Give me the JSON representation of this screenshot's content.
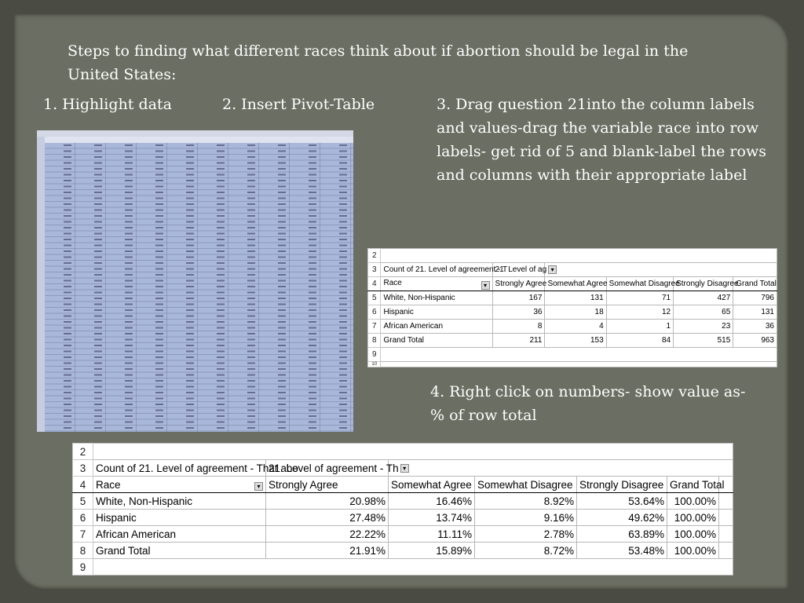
{
  "title": "Steps to finding what different races think about if abortion should be legal in the United States:",
  "steps": {
    "s1": "1. Highlight data",
    "s2": "2. Insert Pivot-Table",
    "s3": "3. Drag question 21into the column labels and values-drag the variable race into row labels- get rid of 5 and blank-label the rows and columns with their appropriate label",
    "s4": "4. Right click on numbers- show value as- % of row total"
  },
  "small_table": {
    "rows": [
      "2",
      "3",
      "4",
      "5",
      "6",
      "7",
      "8",
      "9",
      "10"
    ],
    "count_label": "Count of 21. Level of agreement - T",
    "col_field": "21. Level of ag",
    "row_field": "Race",
    "headers": [
      "Strongly Agree",
      "Somewhat Agree",
      "Somewhat Disagree",
      "Strongly Disagree",
      "Grand Total"
    ],
    "data": [
      {
        "label": "White, Non-Hispanic",
        "values": [
          "167",
          "131",
          "71",
          "427",
          "796"
        ]
      },
      {
        "label": "Hispanic",
        "values": [
          "36",
          "18",
          "12",
          "65",
          "131"
        ]
      },
      {
        "label": "African American",
        "values": [
          "8",
          "4",
          "1",
          "23",
          "36"
        ]
      },
      {
        "label": "Grand Total",
        "values": [
          "211",
          "153",
          "84",
          "515",
          "963"
        ]
      }
    ]
  },
  "big_table": {
    "rows": [
      "2",
      "3",
      "4",
      "5",
      "6",
      "7",
      "8",
      "9"
    ],
    "count_label": "Count of 21. Level of agreement - That abo",
    "col_field": "21. Level of agreement - Th",
    "row_field": "Race",
    "headers": [
      "Strongly Agree",
      "Somewhat Agree",
      "Somewhat Disagree",
      "Strongly Disagree",
      "Grand Total"
    ],
    "data": [
      {
        "label": "White, Non-Hispanic",
        "values": [
          "20.98%",
          "16.46%",
          "8.92%",
          "53.64%",
          "100.00%"
        ]
      },
      {
        "label": "Hispanic",
        "values": [
          "27.48%",
          "13.74%",
          "9.16%",
          "49.62%",
          "100.00%"
        ]
      },
      {
        "label": "African American",
        "values": [
          "22.22%",
          "11.11%",
          "2.78%",
          "63.89%",
          "100.00%"
        ]
      },
      {
        "label": "Grand Total",
        "values": [
          "21.91%",
          "15.89%",
          "8.72%",
          "53.48%",
          "100.00%"
        ]
      }
    ]
  }
}
